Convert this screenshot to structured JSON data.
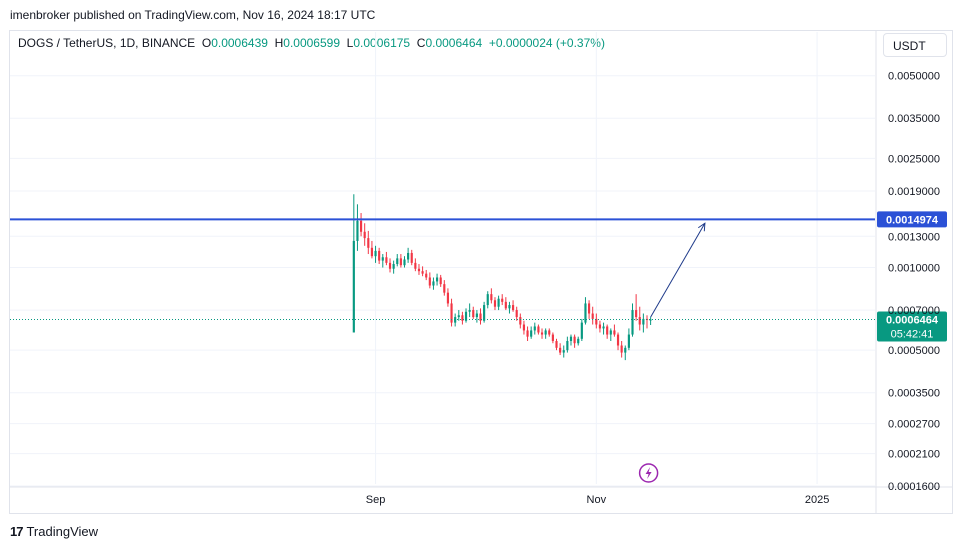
{
  "caption": "imenbroker published on TradingView.com, Nov 16, 2024 18:17 UTC",
  "legend": {
    "symbol": "DOGS / TetherUS, 1D, BINANCE",
    "o_key": "O",
    "o_val": "0.0006439",
    "h_key": "H",
    "h_val": "0.0006599",
    "l_key": "L",
    "l_val": "0.0006175",
    "c_key": "C",
    "c_val": "0.0006464",
    "change": "+0.0000024 (+0.37%)"
  },
  "currency_button": "USDT",
  "footer": {
    "brand": "TradingView",
    "mark": "17"
  },
  "chart_data": {
    "type": "candlestick",
    "y_scale": "log",
    "ylim": [
      0.00016,
      0.0058
    ],
    "y_ticks": [
      {
        "value": 0.005,
        "label": "0.0050000"
      },
      {
        "value": 0.0035,
        "label": "0.0035000"
      },
      {
        "value": 0.0025,
        "label": "0.0025000"
      },
      {
        "value": 0.0019,
        "label": "0.0019000"
      },
      {
        "value": 0.0013,
        "label": "0.0013000"
      },
      {
        "value": 0.001,
        "label": "0.0010000"
      },
      {
        "value": 0.0007,
        "label": "0.0007000"
      },
      {
        "value": 0.0005,
        "label": "0.0005000"
      },
      {
        "value": 0.00035,
        "label": "0.0003500"
      },
      {
        "value": 0.00027,
        "label": "0.0002700"
      },
      {
        "value": 0.00021,
        "label": "0.0002100"
      },
      {
        "value": 0.00016,
        "label": "0.0001600"
      }
    ],
    "x_ticks": [
      {
        "date": "2024-09-01",
        "label": "Sep"
      },
      {
        "date": "2024-11-01",
        "label": "Nov"
      },
      {
        "date": "2025-01-01",
        "label": "2025"
      }
    ],
    "x_range": [
      "2024-05-23",
      "2025-01-17"
    ],
    "horizontal_level": {
      "value": 0.0014974,
      "label": "0.0014974",
      "color": "#2b51d6"
    },
    "last_price": {
      "value": 0.0006464,
      "label": "0.0006464",
      "countdown": "05:42:41",
      "color": "#089981"
    },
    "projection_arrow": {
      "from": {
        "date": "2024-11-16",
        "value": 0.00066
      },
      "to": {
        "date": "2024-12-01",
        "value": 0.00145
      }
    },
    "up_color": "#089981",
    "down_color": "#f23645",
    "candles": [
      {
        "date": "2024-08-26",
        "o": 0.00058,
        "h": 0.00185,
        "l": 0.00058,
        "c": 0.00125
      },
      {
        "date": "2024-08-27",
        "o": 0.00125,
        "h": 0.0017,
        "l": 0.00115,
        "c": 0.00148
      },
      {
        "date": "2024-08-28",
        "o": 0.00148,
        "h": 0.00158,
        "l": 0.0013,
        "c": 0.00135
      },
      {
        "date": "2024-08-29",
        "o": 0.00135,
        "h": 0.00145,
        "l": 0.0012,
        "c": 0.00128
      },
      {
        "date": "2024-08-30",
        "o": 0.00128,
        "h": 0.00136,
        "l": 0.00112,
        "c": 0.00118
      },
      {
        "date": "2024-08-31",
        "o": 0.00118,
        "h": 0.00125,
        "l": 0.00108,
        "c": 0.0011
      },
      {
        "date": "2024-09-01",
        "o": 0.0011,
        "h": 0.0012,
        "l": 0.00104,
        "c": 0.00115
      },
      {
        "date": "2024-09-02",
        "o": 0.00115,
        "h": 0.00118,
        "l": 0.00103,
        "c": 0.00106
      },
      {
        "date": "2024-09-03",
        "o": 0.00106,
        "h": 0.00112,
        "l": 0.001,
        "c": 0.00109
      },
      {
        "date": "2024-09-04",
        "o": 0.00109,
        "h": 0.00114,
        "l": 0.00102,
        "c": 0.00104
      },
      {
        "date": "2024-09-05",
        "o": 0.00104,
        "h": 0.00108,
        "l": 0.00096,
        "c": 0.00099
      },
      {
        "date": "2024-09-06",
        "o": 0.00099,
        "h": 0.00106,
        "l": 0.00095,
        "c": 0.00103
      },
      {
        "date": "2024-09-07",
        "o": 0.00103,
        "h": 0.00112,
        "l": 0.00101,
        "c": 0.00108
      },
      {
        "date": "2024-09-08",
        "o": 0.00108,
        "h": 0.00112,
        "l": 0.001,
        "c": 0.00102
      },
      {
        "date": "2024-09-09",
        "o": 0.00102,
        "h": 0.0011,
        "l": 0.001,
        "c": 0.00107
      },
      {
        "date": "2024-09-10",
        "o": 0.00107,
        "h": 0.00118,
        "l": 0.00104,
        "c": 0.00113
      },
      {
        "date": "2024-09-11",
        "o": 0.00113,
        "h": 0.00116,
        "l": 0.00102,
        "c": 0.00104
      },
      {
        "date": "2024-09-12",
        "o": 0.00104,
        "h": 0.00108,
        "l": 0.00097,
        "c": 0.00099
      },
      {
        "date": "2024-09-13",
        "o": 0.00099,
        "h": 0.00103,
        "l": 0.00094,
        "c": 0.00097
      },
      {
        "date": "2024-09-14",
        "o": 0.00097,
        "h": 0.00101,
        "l": 0.00093,
        "c": 0.00095
      },
      {
        "date": "2024-09-15",
        "o": 0.00095,
        "h": 0.00098,
        "l": 0.0009,
        "c": 0.00092
      },
      {
        "date": "2024-09-16",
        "o": 0.00092,
        "h": 0.00096,
        "l": 0.00084,
        "c": 0.00086
      },
      {
        "date": "2024-09-17",
        "o": 0.00086,
        "h": 0.00092,
        "l": 0.00083,
        "c": 0.00089
      },
      {
        "date": "2024-09-18",
        "o": 0.00089,
        "h": 0.00095,
        "l": 0.00086,
        "c": 0.00092
      },
      {
        "date": "2024-09-19",
        "o": 0.00092,
        "h": 0.00094,
        "l": 0.00085,
        "c": 0.00087
      },
      {
        "date": "2024-09-20",
        "o": 0.00087,
        "h": 0.0009,
        "l": 0.00079,
        "c": 0.00081
      },
      {
        "date": "2024-09-21",
        "o": 0.00081,
        "h": 0.00084,
        "l": 0.00072,
        "c": 0.00074
      },
      {
        "date": "2024-09-22",
        "o": 0.00074,
        "h": 0.00077,
        "l": 0.00061,
        "c": 0.00063
      },
      {
        "date": "2024-09-23",
        "o": 0.00063,
        "h": 0.00068,
        "l": 0.00061,
        "c": 0.00066
      },
      {
        "date": "2024-09-24",
        "o": 0.00066,
        "h": 0.0007,
        "l": 0.00064,
        "c": 0.00067
      },
      {
        "date": "2024-09-25",
        "o": 0.00067,
        "h": 0.00069,
        "l": 0.00062,
        "c": 0.00064
      },
      {
        "date": "2024-09-26",
        "o": 0.00064,
        "h": 0.00071,
        "l": 0.00063,
        "c": 0.00069
      },
      {
        "date": "2024-09-27",
        "o": 0.00069,
        "h": 0.00074,
        "l": 0.00066,
        "c": 0.0007
      },
      {
        "date": "2024-09-28",
        "o": 0.0007,
        "h": 0.00072,
        "l": 0.00065,
        "c": 0.00066
      },
      {
        "date": "2024-09-29",
        "o": 0.00066,
        "h": 0.0007,
        "l": 0.00063,
        "c": 0.00068
      },
      {
        "date": "2024-09-30",
        "o": 0.00068,
        "h": 0.00071,
        "l": 0.00062,
        "c": 0.00064
      },
      {
        "date": "2024-10-01",
        "o": 0.00064,
        "h": 0.00075,
        "l": 0.00063,
        "c": 0.00073
      },
      {
        "date": "2024-10-02",
        "o": 0.00073,
        "h": 0.00082,
        "l": 0.00071,
        "c": 0.0008
      },
      {
        "date": "2024-10-03",
        "o": 0.0008,
        "h": 0.00084,
        "l": 0.00074,
        "c": 0.00076
      },
      {
        "date": "2024-10-04",
        "o": 0.00076,
        "h": 0.00078,
        "l": 0.0007,
        "c": 0.00072
      },
      {
        "date": "2024-10-05",
        "o": 0.00072,
        "h": 0.00079,
        "l": 0.0007,
        "c": 0.00077
      },
      {
        "date": "2024-10-06",
        "o": 0.00077,
        "h": 0.0008,
        "l": 0.00073,
        "c": 0.00075
      },
      {
        "date": "2024-10-07",
        "o": 0.00075,
        "h": 0.00078,
        "l": 0.0007,
        "c": 0.00071
      },
      {
        "date": "2024-10-08",
        "o": 0.00071,
        "h": 0.00075,
        "l": 0.00068,
        "c": 0.00073
      },
      {
        "date": "2024-10-09",
        "o": 0.00073,
        "h": 0.00076,
        "l": 0.00069,
        "c": 0.0007
      },
      {
        "date": "2024-10-10",
        "o": 0.0007,
        "h": 0.00072,
        "l": 0.00064,
        "c": 0.00066
      },
      {
        "date": "2024-10-11",
        "o": 0.00066,
        "h": 0.00068,
        "l": 0.0006,
        "c": 0.00062
      },
      {
        "date": "2024-10-12",
        "o": 0.00062,
        "h": 0.00064,
        "l": 0.00057,
        "c": 0.00059
      },
      {
        "date": "2024-10-13",
        "o": 0.00059,
        "h": 0.00061,
        "l": 0.00054,
        "c": 0.00056
      },
      {
        "date": "2024-10-14",
        "o": 0.00056,
        "h": 0.00061,
        "l": 0.00055,
        "c": 0.00059
      },
      {
        "date": "2024-10-15",
        "o": 0.00059,
        "h": 0.00063,
        "l": 0.00057,
        "c": 0.00061
      },
      {
        "date": "2024-10-16",
        "o": 0.00061,
        "h": 0.00062,
        "l": 0.00057,
        "c": 0.00058
      },
      {
        "date": "2024-10-17",
        "o": 0.00058,
        "h": 0.0006,
        "l": 0.00055,
        "c": 0.00057
      },
      {
        "date": "2024-10-18",
        "o": 0.00057,
        "h": 0.0006,
        "l": 0.00055,
        "c": 0.00059
      },
      {
        "date": "2024-10-19",
        "o": 0.00059,
        "h": 0.0006,
        "l": 0.00056,
        "c": 0.00057
      },
      {
        "date": "2024-10-20",
        "o": 0.00057,
        "h": 0.00058,
        "l": 0.00053,
        "c": 0.00054
      },
      {
        "date": "2024-10-21",
        "o": 0.00054,
        "h": 0.00055,
        "l": 0.0005,
        "c": 0.00051
      },
      {
        "date": "2024-10-22",
        "o": 0.00051,
        "h": 0.00053,
        "l": 0.00048,
        "c": 0.00049
      },
      {
        "date": "2024-10-23",
        "o": 0.00049,
        "h": 0.00052,
        "l": 0.00047,
        "c": 0.0005
      },
      {
        "date": "2024-10-24",
        "o": 0.0005,
        "h": 0.00056,
        "l": 0.00049,
        "c": 0.00054
      },
      {
        "date": "2024-10-25",
        "o": 0.00054,
        "h": 0.00057,
        "l": 0.00052,
        "c": 0.00056
      },
      {
        "date": "2024-10-26",
        "o": 0.00056,
        "h": 0.00057,
        "l": 0.00051,
        "c": 0.00053
      },
      {
        "date": "2024-10-27",
        "o": 0.00053,
        "h": 0.00056,
        "l": 0.00052,
        "c": 0.00055
      },
      {
        "date": "2024-10-28",
        "o": 0.00055,
        "h": 0.00065,
        "l": 0.00054,
        "c": 0.00063
      },
      {
        "date": "2024-10-29",
        "o": 0.00063,
        "h": 0.00078,
        "l": 0.00062,
        "c": 0.00074
      },
      {
        "date": "2024-10-30",
        "o": 0.00074,
        "h": 0.00076,
        "l": 0.00065,
        "c": 0.00068
      },
      {
        "date": "2024-10-31",
        "o": 0.00068,
        "h": 0.00072,
        "l": 0.00062,
        "c": 0.00065
      },
      {
        "date": "2024-11-01",
        "o": 0.00065,
        "h": 0.00068,
        "l": 0.0006,
        "c": 0.00062
      },
      {
        "date": "2024-11-02",
        "o": 0.00062,
        "h": 0.00064,
        "l": 0.00058,
        "c": 0.0006
      },
      {
        "date": "2024-11-03",
        "o": 0.0006,
        "h": 0.00063,
        "l": 0.00057,
        "c": 0.00061
      },
      {
        "date": "2024-11-04",
        "o": 0.00061,
        "h": 0.00062,
        "l": 0.00055,
        "c": 0.00057
      },
      {
        "date": "2024-11-05",
        "o": 0.00057,
        "h": 0.0006,
        "l": 0.00054,
        "c": 0.00059
      },
      {
        "date": "2024-11-06",
        "o": 0.00059,
        "h": 0.00062,
        "l": 0.00056,
        "c": 0.00057
      },
      {
        "date": "2024-11-07",
        "o": 0.00057,
        "h": 0.00058,
        "l": 0.0005,
        "c": 0.00052
      },
      {
        "date": "2024-11-08",
        "o": 0.00052,
        "h": 0.00054,
        "l": 0.00047,
        "c": 0.00049
      },
      {
        "date": "2024-11-09",
        "o": 0.00049,
        "h": 0.00052,
        "l": 0.00046,
        "c": 0.00051
      },
      {
        "date": "2024-11-10",
        "o": 0.00051,
        "h": 0.0006,
        "l": 0.0005,
        "c": 0.00057
      },
      {
        "date": "2024-11-11",
        "o": 0.00057,
        "h": 0.00074,
        "l": 0.00056,
        "c": 0.0007
      },
      {
        "date": "2024-11-12",
        "o": 0.0007,
        "h": 0.0008,
        "l": 0.00064,
        "c": 0.00066
      },
      {
        "date": "2024-11-13",
        "o": 0.00066,
        "h": 0.00072,
        "l": 0.00059,
        "c": 0.00062
      },
      {
        "date": "2024-11-14",
        "o": 0.00062,
        "h": 0.00068,
        "l": 0.00058,
        "c": 0.00065
      },
      {
        "date": "2024-11-15",
        "o": 0.00065,
        "h": 0.00067,
        "l": 0.0006,
        "c": 0.00064392
      },
      {
        "date": "2024-11-16",
        "o": 0.0006439,
        "h": 0.0006599,
        "l": 0.0006175,
        "c": 0.0006464
      }
    ]
  }
}
